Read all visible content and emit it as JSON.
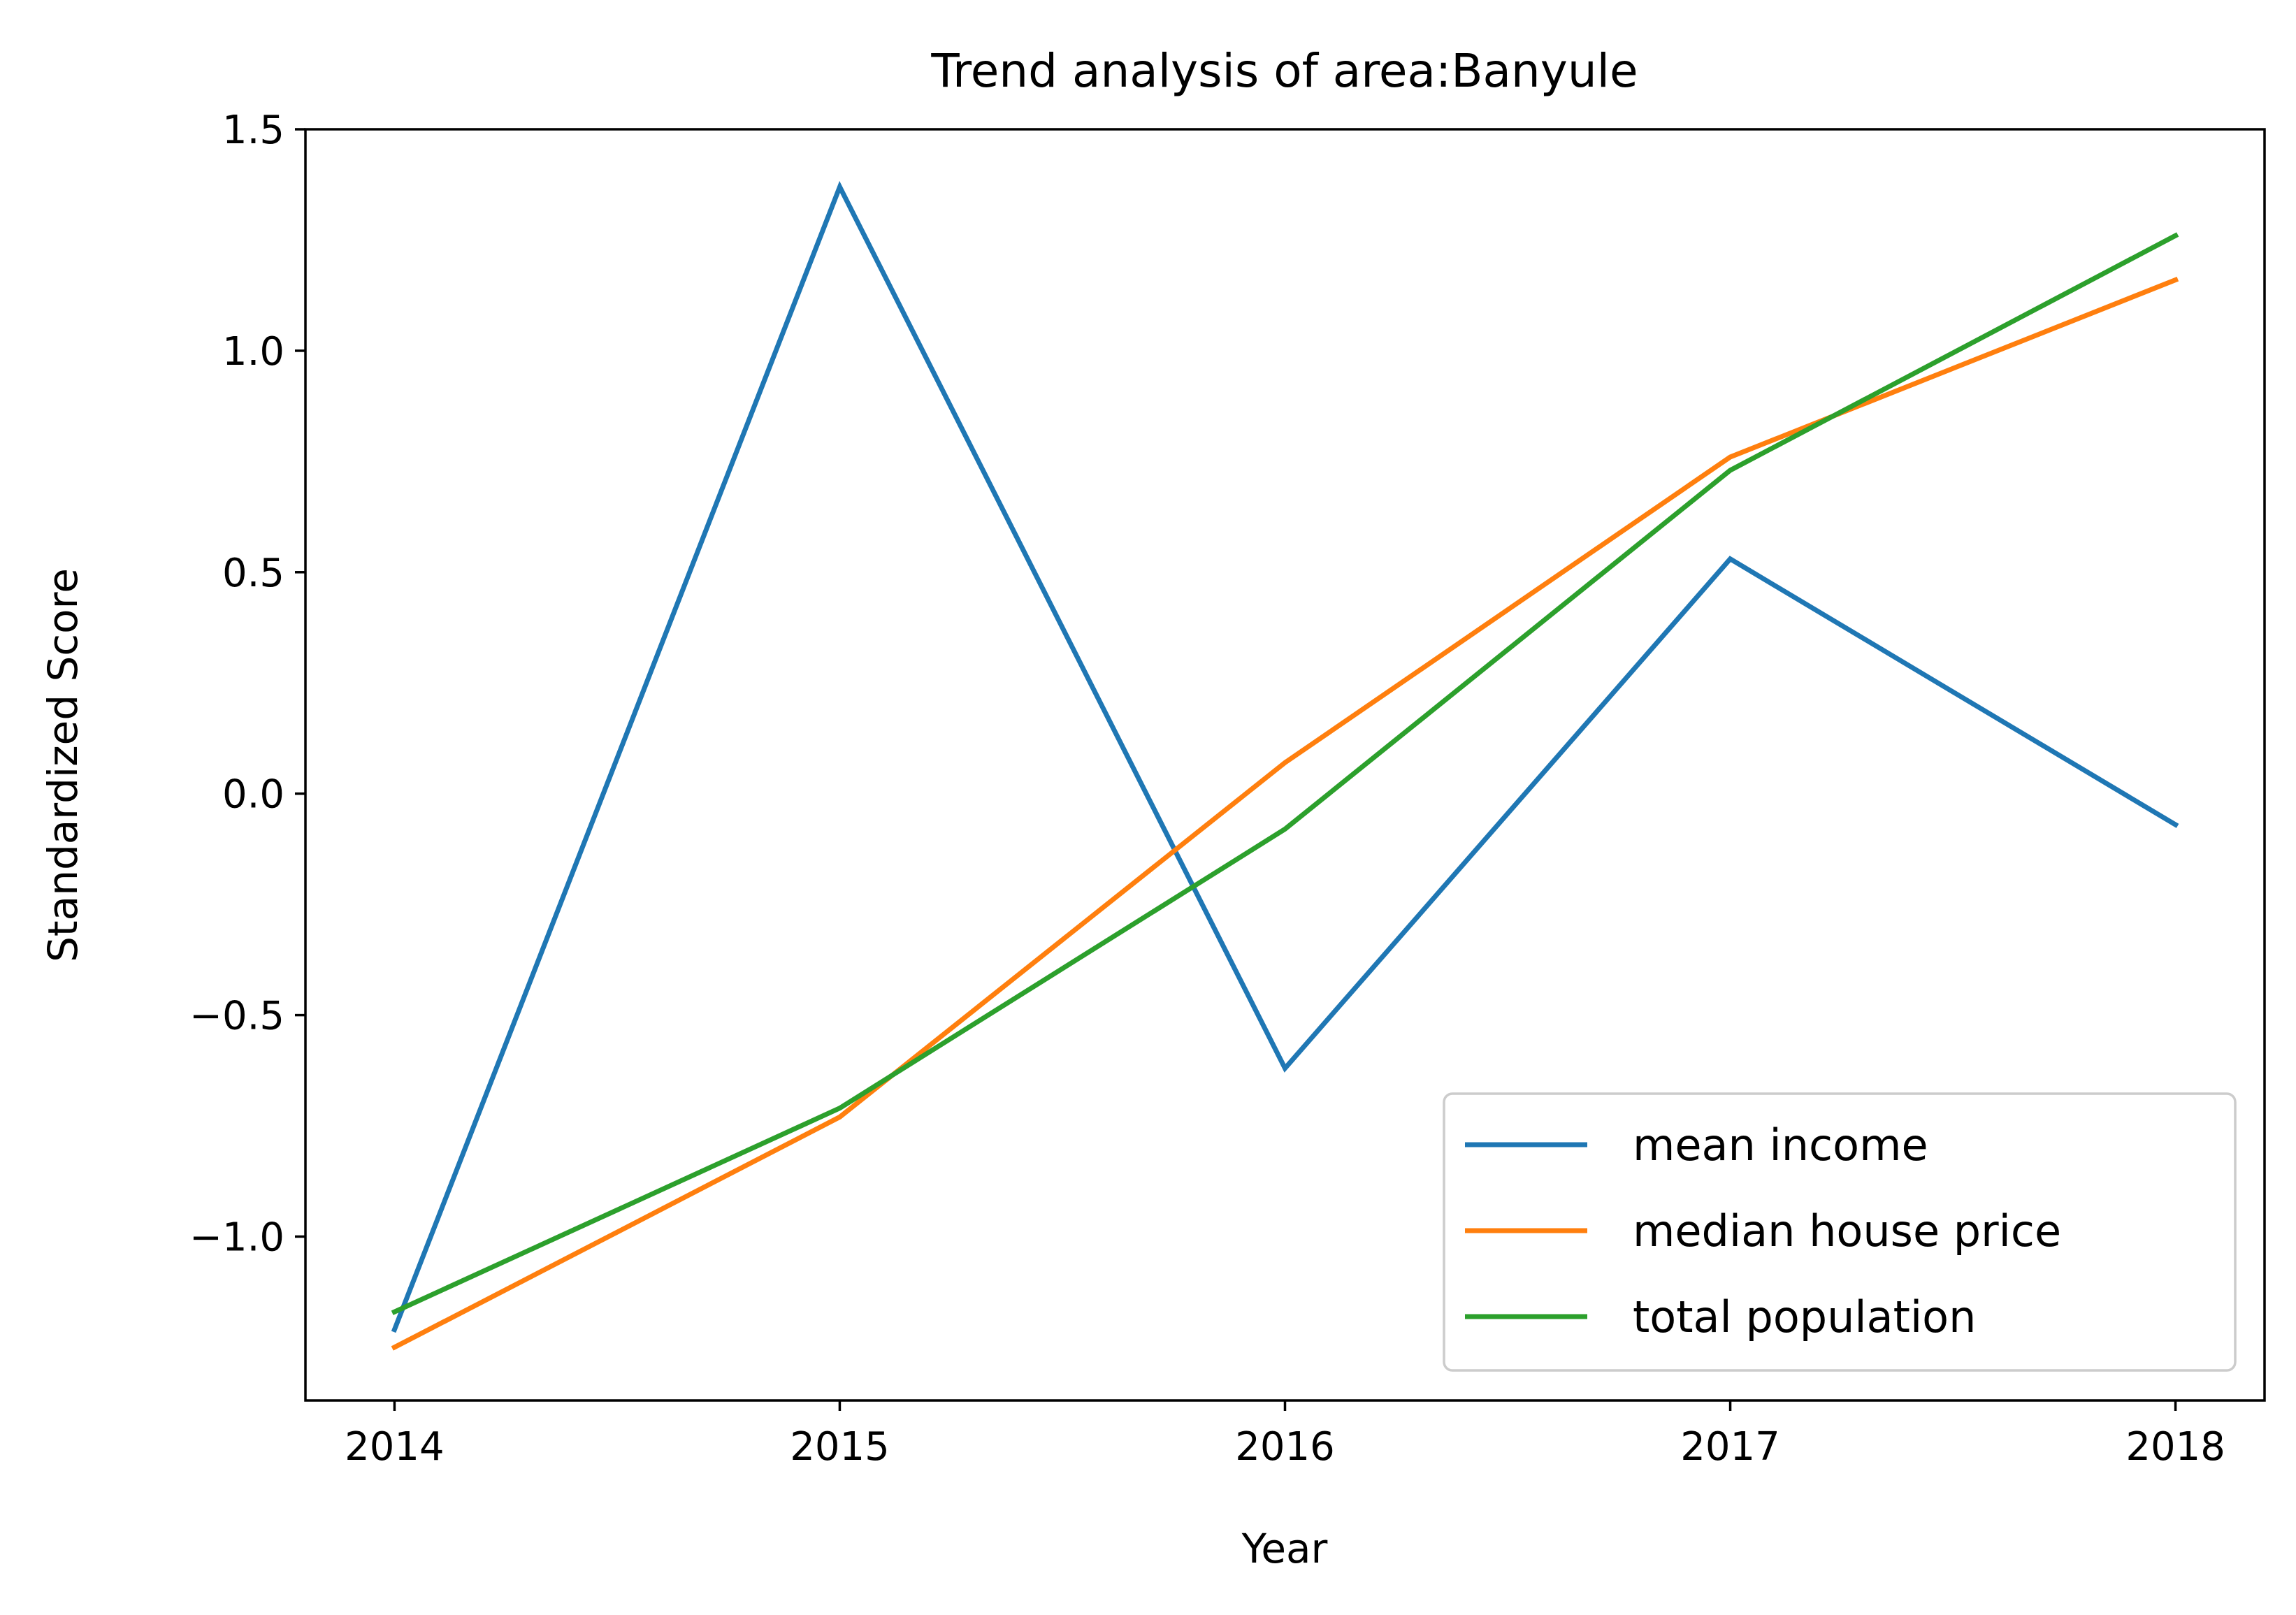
{
  "chart_data": {
    "type": "line",
    "title": "Trend analysis of area:Banyule",
    "xlabel": "Year",
    "ylabel": "Standardized Score",
    "x": [
      2014,
      2015,
      2016,
      2017,
      2018
    ],
    "x_tick_labels": [
      "2014",
      "2015",
      "2016",
      "2017",
      "2018"
    ],
    "xlim": [
      2013.8,
      2018.2
    ],
    "ylim": [
      -1.37,
      1.5
    ],
    "y_ticks": [
      -1.0,
      -0.5,
      0.0,
      0.5,
      1.0,
      1.5
    ],
    "y_tick_labels": [
      "−1.0",
      "−0.5",
      "0.0",
      "0.5",
      "1.0",
      "1.5"
    ],
    "grid": false,
    "legend_position": "lower right",
    "series": [
      {
        "name": "mean income",
        "color": "#1f77b4",
        "values": [
          -1.21,
          1.37,
          -0.62,
          0.53,
          -0.07
        ]
      },
      {
        "name": "median house price",
        "color": "#ff7f0e",
        "values": [
          -1.25,
          -0.73,
          0.07,
          0.76,
          1.16
        ]
      },
      {
        "name": "total population",
        "color": "#2ca02c",
        "values": [
          -1.17,
          -0.71,
          -0.08,
          0.73,
          1.26
        ]
      }
    ]
  }
}
